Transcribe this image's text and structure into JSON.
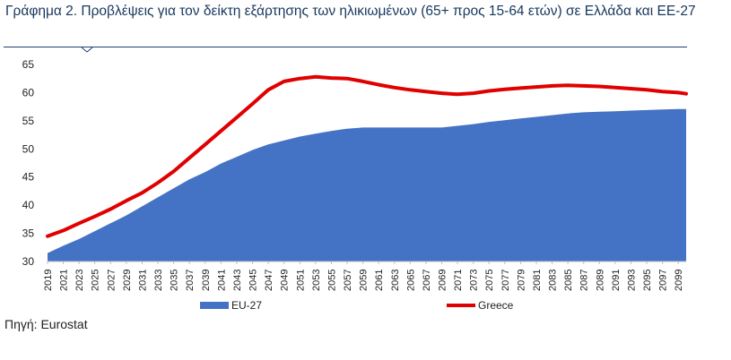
{
  "header": {
    "title": "Γράφημα 2. Προβλέψεις για τον δείκτη εξάρτησης των ηλικιωμένων (65+ προς 15-64 ετών) σε Ελλάδα και ΕΕ-27"
  },
  "footer": {
    "source": "Πηγή: Eurostat"
  },
  "chart_data": {
    "type": "area",
    "title": "",
    "xlabel": "",
    "ylabel": "",
    "ylim": [
      30,
      65
    ],
    "yticks": [
      30,
      35,
      40,
      45,
      50,
      55,
      60,
      65
    ],
    "xlim": [
      2019,
      2100
    ],
    "xticks": [
      2019,
      2021,
      2023,
      2025,
      2027,
      2029,
      2031,
      2033,
      2035,
      2037,
      2039,
      2041,
      2043,
      2045,
      2047,
      2049,
      2051,
      2053,
      2055,
      2057,
      2059,
      2061,
      2063,
      2065,
      2067,
      2069,
      2071,
      2073,
      2075,
      2077,
      2079,
      2081,
      2083,
      2085,
      2087,
      2089,
      2091,
      2093,
      2095,
      2097,
      2099
    ],
    "grid": false,
    "legend": "bottom",
    "series": [
      {
        "name": "EU-27",
        "render": "area",
        "color": "#4472c4",
        "x": [
          2019,
          2021,
          2023,
          2025,
          2027,
          2029,
          2031,
          2033,
          2035,
          2037,
          2039,
          2041,
          2043,
          2045,
          2047,
          2049,
          2051,
          2053,
          2055,
          2057,
          2059,
          2061,
          2063,
          2065,
          2067,
          2069,
          2071,
          2073,
          2075,
          2077,
          2079,
          2081,
          2083,
          2085,
          2087,
          2089,
          2091,
          2093,
          2095,
          2097,
          2099,
          2100
        ],
        "values": [
          31.5,
          32.8,
          34.0,
          35.4,
          36.8,
          38.2,
          39.8,
          41.4,
          43.0,
          44.6,
          45.9,
          47.4,
          48.6,
          49.8,
          50.8,
          51.5,
          52.2,
          52.7,
          53.2,
          53.6,
          53.8,
          53.8,
          53.8,
          53.8,
          53.8,
          53.8,
          54.1,
          54.4,
          54.8,
          55.1,
          55.4,
          55.7,
          56.0,
          56.3,
          56.5,
          56.6,
          56.7,
          56.8,
          56.9,
          57.0,
          57.1,
          57.1
        ]
      },
      {
        "name": "Greece",
        "render": "line",
        "color": "#e00000",
        "x": [
          2019,
          2021,
          2023,
          2025,
          2027,
          2029,
          2031,
          2033,
          2035,
          2037,
          2039,
          2041,
          2043,
          2045,
          2047,
          2049,
          2051,
          2053,
          2055,
          2057,
          2059,
          2061,
          2063,
          2065,
          2067,
          2069,
          2071,
          2073,
          2075,
          2077,
          2079,
          2081,
          2083,
          2085,
          2087,
          2089,
          2091,
          2093,
          2095,
          2097,
          2099,
          2100
        ],
        "values": [
          34.5,
          35.5,
          36.8,
          38.0,
          39.3,
          40.8,
          42.2,
          44.0,
          46.0,
          48.4,
          50.8,
          53.2,
          55.6,
          58.0,
          60.5,
          62.0,
          62.5,
          62.8,
          62.6,
          62.5,
          62.0,
          61.4,
          60.9,
          60.5,
          60.2,
          59.9,
          59.7,
          59.9,
          60.3,
          60.6,
          60.8,
          61.0,
          61.2,
          61.3,
          61.2,
          61.1,
          60.9,
          60.7,
          60.5,
          60.2,
          60.0,
          59.8
        ]
      }
    ]
  }
}
